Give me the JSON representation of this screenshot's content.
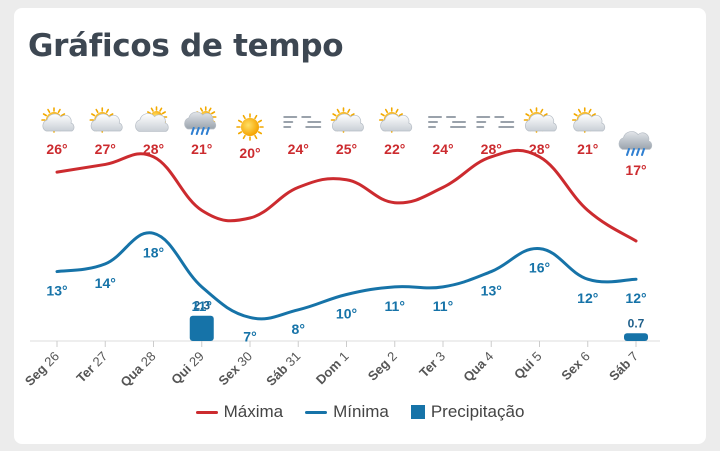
{
  "title": "Gráficos de tempo",
  "chart_data": {
    "type": "line",
    "categories": [
      "Seg 26",
      "Ter 27",
      "Qua 28",
      "Qui 29",
      "Sex 30",
      "Sáb 31",
      "Dom 1",
      "Seg 2",
      "Ter 3",
      "Qua 4",
      "Qui 5",
      "Sex 6",
      "Sáb 7"
    ],
    "series": [
      {
        "name": "Máxima",
        "unit": "°",
        "color": "#cc2b2f",
        "values": [
          26,
          27,
          28,
          21,
          20,
          24,
          25,
          22,
          24,
          28,
          28,
          21,
          17
        ]
      },
      {
        "name": "Mínima",
        "unit": "°",
        "color": "#1673a8",
        "values": [
          13,
          14,
          18,
          11,
          7,
          8,
          10,
          11,
          11,
          13,
          16,
          12,
          12
        ]
      },
      {
        "name": "Precipitação",
        "type": "bar",
        "color": "#1673a8",
        "values": [
          0,
          0,
          0,
          2.3,
          0,
          0,
          0,
          0,
          0,
          0,
          0,
          0,
          0.7
        ]
      }
    ],
    "weather_icons": [
      "partly-cloudy-icon",
      "partly-cloudy-icon",
      "cloudy-icon",
      "rain-icon",
      "sunny-icon",
      "fog-icon",
      "partly-cloudy-icon",
      "partly-cloudy-icon",
      "fog-icon",
      "fog-icon",
      "partly-cloudy-icon",
      "partly-cloudy-icon",
      "heavy-rain-icon"
    ],
    "legend": [
      {
        "label": "Máxima",
        "kind": "line",
        "color": "#cc2b2f"
      },
      {
        "label": "Mínima",
        "kind": "line",
        "color": "#1673a8"
      },
      {
        "label": "Precipitação",
        "kind": "box",
        "color": "#1673a8"
      }
    ],
    "legend_position": "bottom"
  }
}
